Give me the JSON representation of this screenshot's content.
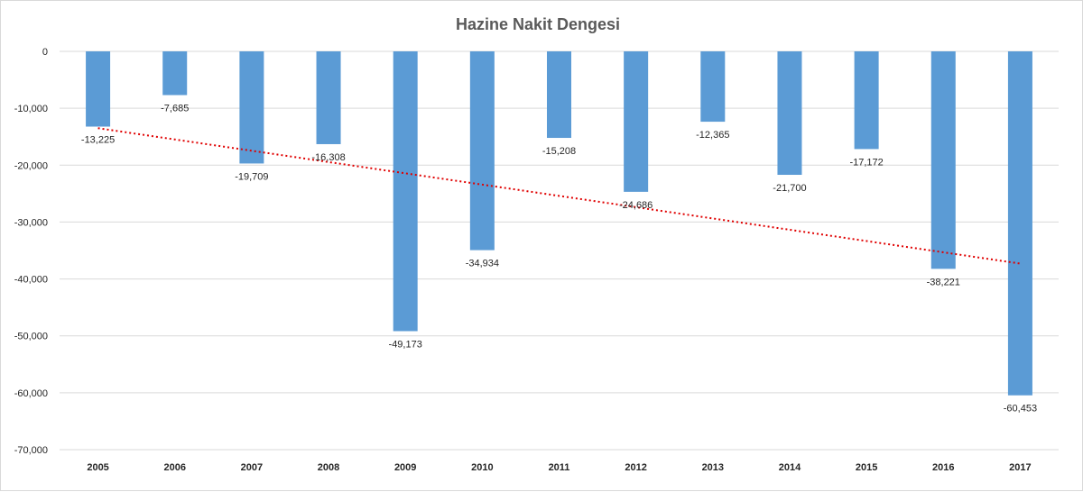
{
  "chart_data": {
    "type": "bar",
    "title": "Hazine Nakit Dengesi",
    "categories": [
      "2005",
      "2006",
      "2007",
      "2008",
      "2009",
      "2010",
      "2011",
      "2012",
      "2013",
      "2014",
      "2015",
      "2016",
      "2017"
    ],
    "values": [
      -13225,
      -7685,
      -19709,
      -16308,
      -49173,
      -34934,
      -15208,
      -24686,
      -12365,
      -21700,
      -17172,
      -38221,
      -60453
    ],
    "value_labels": [
      "-13,225",
      "-7,685",
      "-19,709",
      "-16,308",
      "-49,173",
      "-34,934",
      "-15,208",
      "-24,686",
      "-12,365",
      "-21,700",
      "-17,172",
      "-38,221",
      "-60,453"
    ],
    "y_ticks": [
      0,
      -10000,
      -20000,
      -30000,
      -40000,
      -50000,
      -60000,
      -70000
    ],
    "y_tick_labels": [
      "0",
      "-10,000",
      "-20,000",
      "-30,000",
      "-40,000",
      "-50,000",
      "-60,000",
      "-70,000"
    ],
    "ylim": [
      -70000,
      0
    ],
    "xlabel": "",
    "ylabel": "",
    "grid": true,
    "trendline": {
      "type": "linear",
      "style": "dotted",
      "start": -13500,
      "end": -37300
    },
    "colors": {
      "bar": "#5b9bd5",
      "trend": "#e00000",
      "grid": "#d9d9d9",
      "text": "#262626",
      "title": "#595959"
    }
  }
}
